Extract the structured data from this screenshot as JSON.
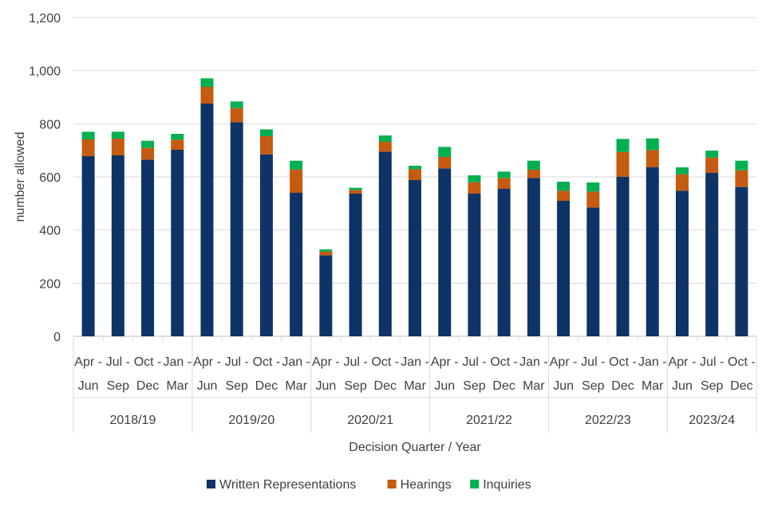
{
  "chart_data": {
    "type": "bar",
    "stacked": true,
    "title": "",
    "xlabel": "Decision Quarter / Year",
    "ylabel": "number allowed",
    "ylim": [
      0,
      1200
    ],
    "yticks": [
      0,
      200,
      400,
      600,
      800,
      1000,
      1200
    ],
    "ytick_labels": [
      "0",
      "200",
      "400",
      "600",
      "800",
      "1,000",
      "1,200"
    ],
    "grid": true,
    "legend_position": "bottom",
    "quarters": [
      {
        "line1": "Apr -",
        "line2": "Jun"
      },
      {
        "line1": "Jul -",
        "line2": "Sep"
      },
      {
        "line1": "Oct -",
        "line2": "Dec"
      },
      {
        "line1": "Jan -",
        "line2": "Mar"
      },
      {
        "line1": "Apr -",
        "line2": "Jun"
      },
      {
        "line1": "Jul -",
        "line2": "Sep"
      },
      {
        "line1": "Oct -",
        "line2": "Dec"
      },
      {
        "line1": "Jan -",
        "line2": "Mar"
      },
      {
        "line1": "Apr -",
        "line2": "Jun"
      },
      {
        "line1": "Jul -",
        "line2": "Sep"
      },
      {
        "line1": "Oct -",
        "line2": "Dec"
      },
      {
        "line1": "Jan -",
        "line2": "Mar"
      },
      {
        "line1": "Apr -",
        "line2": "Jun"
      },
      {
        "line1": "Jul -",
        "line2": "Sep"
      },
      {
        "line1": "Oct -",
        "line2": "Dec"
      },
      {
        "line1": "Jan -",
        "line2": "Mar"
      },
      {
        "line1": "Apr -",
        "line2": "Jun"
      },
      {
        "line1": "Jul -",
        "line2": "Sep"
      },
      {
        "line1": "Oct -",
        "line2": "Dec"
      },
      {
        "line1": "Jan -",
        "line2": "Mar"
      },
      {
        "line1": "Apr -",
        "line2": "Jun"
      },
      {
        "line1": "Jul -",
        "line2": "Sep"
      },
      {
        "line1": "Oct -",
        "line2": "Dec"
      }
    ],
    "years": [
      {
        "label": "2018/19",
        "count": 4
      },
      {
        "label": "2019/20",
        "count": 4
      },
      {
        "label": "2020/21",
        "count": 4
      },
      {
        "label": "2021/22",
        "count": 4
      },
      {
        "label": "2022/23",
        "count": 4
      },
      {
        "label": "2023/24",
        "count": 3
      }
    ],
    "series": [
      {
        "name": "Written Representations",
        "color": "#0e3366",
        "values": [
          678,
          681,
          665,
          702,
          876,
          806,
          685,
          540,
          305,
          537,
          695,
          588,
          632,
          537,
          555,
          596,
          510,
          485,
          601,
          637,
          548,
          615,
          562
        ]
      },
      {
        "name": "Hearings",
        "color": "#c55a11",
        "values": [
          63,
          63,
          44,
          38,
          63,
          53,
          68,
          88,
          14,
          14,
          37,
          41,
          43,
          43,
          41,
          31,
          38,
          60,
          93,
          64,
          62,
          58,
          63
        ]
      },
      {
        "name": "Inquiries",
        "color": "#00b050",
        "values": [
          29,
          26,
          27,
          22,
          32,
          25,
          26,
          33,
          8,
          8,
          24,
          13,
          38,
          26,
          24,
          34,
          34,
          34,
          49,
          44,
          26,
          26,
          36
        ]
      }
    ]
  }
}
